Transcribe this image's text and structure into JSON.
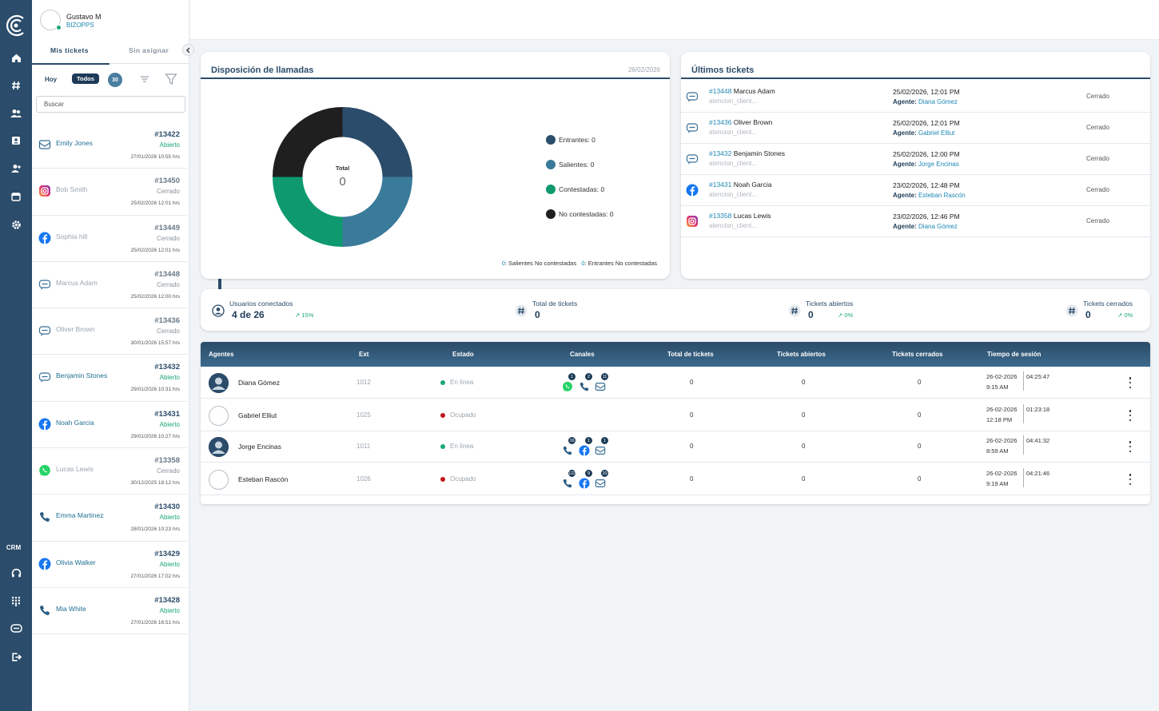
{
  "user": {
    "name": "Gustavo M",
    "org": "BIZOPPS"
  },
  "rail": {
    "crm_label": "CRM"
  },
  "tabs": {
    "mine": "Mis tickets",
    "unassigned": "Sin asignar"
  },
  "filters": {
    "today": "Hoy",
    "all": "Todos",
    "count": "30"
  },
  "search": {
    "placeholder": "Buscar"
  },
  "tickets": [
    {
      "channel": "email",
      "name": "Emily Jones",
      "id": "#13422",
      "status": "Abierto",
      "date": "27/01/2026 10:55 hrs"
    },
    {
      "channel": "instagram",
      "name": "Bob Smith",
      "id": "#13450",
      "status": "Cerrado",
      "date": "25/02/2026 12:01 hrs"
    },
    {
      "channel": "facebook",
      "name": "Sophia hill",
      "id": "#13449",
      "status": "Cerrado",
      "date": "25/02/2026 12:01 hrs"
    },
    {
      "channel": "webchat",
      "name": "Marcus Adam",
      "id": "#13448",
      "status": "Cerrado",
      "date": "25/02/2026 12:00 hrs"
    },
    {
      "channel": "webchat",
      "name": "Oliver Brown",
      "id": "#13436",
      "status": "Cerrado",
      "date": "30/01/2026 15:57 hrs"
    },
    {
      "channel": "webchat",
      "name": "Benjamin Stones",
      "id": "#13432",
      "status": "Abierto",
      "date": "29/01/2026 10:31 hrs"
    },
    {
      "channel": "facebook",
      "name": "Noah Garcia",
      "id": "#13431",
      "status": "Abierto",
      "date": "29/01/2026 10:27 hrs"
    },
    {
      "channel": "whatsapp",
      "name": "Lucas Lewis",
      "id": "#13358",
      "status": "Cerrado",
      "date": "30/12/2025 18:12 hrs"
    },
    {
      "channel": "phone",
      "name": "Emma Martinez",
      "id": "#13430",
      "status": "Abierto",
      "date": "28/01/2026 10:23 hrs"
    },
    {
      "channel": "facebook",
      "name": "Olivia Walker",
      "id": "#13429",
      "status": "Abierto",
      "date": "27/01/2026 17:02 hrs"
    },
    {
      "channel": "phone",
      "name": "Mia White",
      "id": "#13428",
      "status": "Abierto",
      "date": "27/01/2026 16:51 hrs"
    }
  ],
  "disposition": {
    "title": "Disposición de llamadas",
    "date": "26/02/2026",
    "total_label": "Total",
    "total_value": "0",
    "legend": [
      {
        "label": "Entrantes: 0",
        "color": "#2b4c6a"
      },
      {
        "label": "Salientes: 0",
        "color": "#3a7a9a"
      },
      {
        "label": "Contestadas: 0",
        "color": "#0e9a6e"
      },
      {
        "label": "No contestadas: 0",
        "color": "#1f1f1f"
      }
    ],
    "footer": {
      "out_num": "0",
      "out_label": ": Salientes No contestadas",
      "in_num": "0",
      "in_label": ": Entrantes No contestadas"
    }
  },
  "latest": {
    "title": "Últimos tickets",
    "agent_label": "Agente:",
    "rows": [
      {
        "channel": "webchat",
        "id": "#13448",
        "name": "Marcus Adam",
        "sub": "atencion_client...",
        "date": "25/02/2026, 12:01 PM",
        "agent": "Diana Gómez",
        "status": "Cerrado"
      },
      {
        "channel": "webchat",
        "id": "#13436",
        "name": "Oliver Brown",
        "sub": "atencion_client...",
        "date": "25/02/2026, 12:01 PM",
        "agent": "Gabriel Elliut",
        "status": "Cerrado"
      },
      {
        "channel": "webchat",
        "id": "#13432",
        "name": "Benjamin Stones",
        "sub": "atencion_client...",
        "date": "25/02/2026, 12:00 PM",
        "agent": "Jorge Encinas",
        "status": "Cerrado"
      },
      {
        "channel": "facebook",
        "id": "#13431",
        "name": "Noah Garcia",
        "sub": "atencion_client...",
        "date": "23/02/2026, 12:48 PM",
        "agent": "Esteban Rascón",
        "status": "Cerrado"
      },
      {
        "channel": "instagram",
        "id": "#13358",
        "name": "Lucas Lewis",
        "sub": "atencion_client...",
        "date": "23/02/2026, 12:46 PM",
        "agent": "Diana Gómez",
        "status": "Cerrado"
      }
    ]
  },
  "stats": [
    {
      "icon": "user-circle-icon",
      "label": "Usuarios conectados",
      "value": "4 de 26",
      "pct": "15%"
    },
    {
      "icon": "hash-icon",
      "label": "Total de tickets",
      "value": "0",
      "pct": ""
    },
    {
      "icon": "hash-icon",
      "label": "Tickets abiertos",
      "value": "0",
      "pct": "0%"
    },
    {
      "icon": "hash-icon",
      "label": "Tickets cerrados",
      "value": "0",
      "pct": "0%"
    }
  ],
  "agents": {
    "headers": [
      "Agentes",
      "Ext",
      "Estado",
      "Canales",
      "Total de tickets",
      "Tickets abiertos",
      "Tickets cerrados",
      "Tiempo de sesión"
    ],
    "rows": [
      {
        "name": "Diana Gómez",
        "ext": "1012",
        "status": "En línea",
        "status_color": "#1aa872",
        "avatar": "photo",
        "total": "0",
        "open": "0",
        "closed": "0",
        "date": "26-02-2026",
        "time": "9:15 AM",
        "session": "04:25:47",
        "channels": [
          {
            "icon": "whatsapp",
            "badge": "1"
          },
          {
            "icon": "phone",
            "badge": "2"
          },
          {
            "icon": "email",
            "badge": "11"
          }
        ]
      },
      {
        "name": "Gabriel Elliut",
        "ext": "1025",
        "status": "Ocupado",
        "status_color": "#c0161b",
        "avatar": "empty",
        "total": "0",
        "open": "0",
        "closed": "0",
        "date": "26-02-2026",
        "time": "12:18 PM",
        "session": "01:23:18",
        "channels": []
      },
      {
        "name": "Jorge Encinas",
        "ext": "1011",
        "status": "En línea",
        "status_color": "#1aa872",
        "avatar": "photo",
        "total": "0",
        "open": "0",
        "closed": "0",
        "date": "26-02-2026",
        "time": "8:59 AM",
        "session": "04:41:32",
        "channels": [
          {
            "icon": "phone",
            "badge": "16"
          },
          {
            "icon": "facebook",
            "badge": "1"
          },
          {
            "icon": "email",
            "badge": "1"
          }
        ]
      },
      {
        "name": "Esteban Rascón",
        "ext": "1026",
        "status": "Ocupado",
        "status_color": "#c0161b",
        "avatar": "empty",
        "total": "0",
        "open": "0",
        "closed": "0",
        "date": "26-02-2026",
        "time": "9:19 AM",
        "session": "04:21:46",
        "channels": [
          {
            "icon": "phone",
            "badge": "122"
          },
          {
            "icon": "facebook",
            "badge": "9"
          },
          {
            "icon": "email",
            "badge": "10"
          }
        ]
      }
    ]
  }
}
